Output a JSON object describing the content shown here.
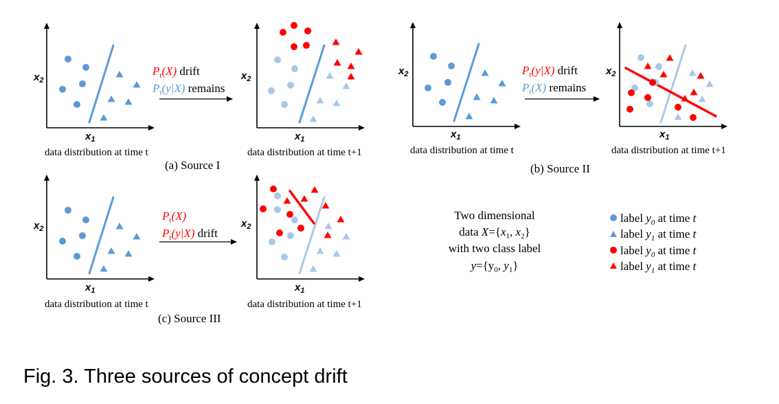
{
  "colors": {
    "blue": "#5b9bd5",
    "light_blue": "#a9c8e8",
    "red": "#ff0000",
    "dark_red": "#e00000",
    "axis": "#000000",
    "text": "#000000"
  },
  "labels": {
    "x1": "x",
    "x1_sub": "1",
    "x2": "x",
    "x2_sub": "2",
    "time_t": "data distribution at time t",
    "time_t1": "data distribution at time t+1"
  },
  "panels": {
    "a": {
      "caption": "(a) Source I"
    },
    "b": {
      "caption": "(b) Source II"
    },
    "c": {
      "caption": "(c) Source III"
    }
  },
  "arrows": {
    "a": {
      "line1_P": "P",
      "line1_t": "t",
      "line1_rest": "(X)",
      "line1_word": " drift",
      "line2_P": "P",
      "line2_t": "t",
      "line2_rest": "(y|X)",
      "line2_word": " remains"
    },
    "b": {
      "line1_P": "P",
      "line1_t": "t",
      "line1_rest": "(y|X)",
      "line1_word": " drift",
      "line2_P": "P",
      "line2_t": "t",
      "line2_rest": "(X)",
      "line2_word": " remains"
    },
    "c": {
      "line1_P": "P",
      "line1_t": "t",
      "line1_rest": "(X)",
      "line2_P": "P",
      "line2_t": "t",
      "line2_rest": "(y|X)",
      "line2_word": " drift"
    }
  },
  "description": {
    "line1": "Two dimensional",
    "line2_a": "data ",
    "line2_X": "X",
    "line2_b": "={",
    "line2_x1": "x",
    "line2_x1sub": "1",
    "line2_c": ", ",
    "line2_x2": "x",
    "line2_x2sub": "2",
    "line2_d": "}",
    "line3": "with two class label",
    "line4_y": "y",
    "line4_a": "={y",
    "line4_0": "0",
    "line4_b": ", ",
    "line4_y1": "y",
    "line4_1": "1",
    "line4_c": "}"
  },
  "legend": [
    {
      "icon": "blue-circle-icon",
      "word": "label ",
      "y": "y",
      "sub": "0",
      "mid": " at time ",
      "t": "t"
    },
    {
      "icon": "blue-triangle-icon",
      "word": "label ",
      "y": "y",
      "sub": "1",
      "mid": " at time ",
      "t": "t"
    },
    {
      "icon": "red-circle-icon",
      "word": "label ",
      "y": "y",
      "sub": "0",
      "mid": " at time ",
      "t": "t"
    },
    {
      "icon": "red-triangle-icon",
      "word": "label ",
      "y": "y",
      "sub": "1",
      "mid": " at time ",
      "t": "t"
    }
  ],
  "figure_caption": "Fig. 3. Three sources of concept drift"
}
